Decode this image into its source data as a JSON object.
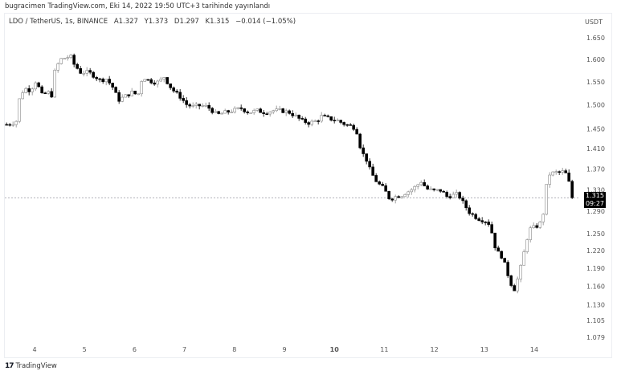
{
  "header": {
    "published": "bugracimen TradingView.com, Eki 14, 2022 19:50 UTC+3 tarihinde yayınlandı"
  },
  "legend": {
    "symbol": "LDO / TetherUS, 1s, BINANCE",
    "open": "A1.327",
    "high": "Y1.373",
    "low": "D1.297",
    "close": "K1.315",
    "change": "−0.014 (−1.05%)"
  },
  "price_label": {
    "price": "1.315",
    "countdown": "09:27"
  },
  "footer": {
    "logo_text": "TradingView",
    "logo_mark": "17"
  },
  "chart_data": {
    "type": "candlestick",
    "currency": "USDT",
    "y_scale": "log",
    "grid": false,
    "ylim": [
      1.065,
      1.69
    ],
    "y_ticks": [
      "1.650",
      "1.600",
      "1.550",
      "1.500",
      "1.450",
      "1.410",
      "1.370",
      "1.330",
      "1.290",
      "1.250",
      "1.220",
      "1.190",
      "1.160",
      "1.130",
      "1.105",
      "1.079"
    ],
    "x_ticks": [
      "4",
      "5",
      "6",
      "7",
      "8",
      "9",
      "10",
      "11",
      "12",
      "13",
      "14"
    ],
    "x_range_days": [
      3.44,
      14.8
    ],
    "colors": {
      "up_body": "#ffffff",
      "up_border": "#8a8a8a",
      "down": "#000000",
      "last_price_line": "#9598a1"
    },
    "last_price": 1.315,
    "close_path": [
      [
        3.44,
        1.459
      ],
      [
        3.63,
        1.464
      ],
      [
        3.69,
        1.51
      ],
      [
        3.79,
        1.536
      ],
      [
        3.92,
        1.531
      ],
      [
        4.03,
        1.553
      ],
      [
        4.14,
        1.521
      ],
      [
        4.27,
        1.527
      ],
      [
        4.37,
        1.518
      ],
      [
        4.4,
        1.571
      ],
      [
        4.51,
        1.6
      ],
      [
        4.63,
        1.604
      ],
      [
        4.72,
        1.607
      ],
      [
        4.79,
        1.589
      ],
      [
        4.92,
        1.571
      ],
      [
        5.08,
        1.571
      ],
      [
        5.21,
        1.562
      ],
      [
        5.32,
        1.553
      ],
      [
        5.43,
        1.557
      ],
      [
        5.56,
        1.539
      ],
      [
        5.68,
        1.51
      ],
      [
        5.8,
        1.518
      ],
      [
        5.95,
        1.527
      ],
      [
        6.07,
        1.521
      ],
      [
        6.16,
        1.562
      ],
      [
        6.28,
        1.553
      ],
      [
        6.44,
        1.548
      ],
      [
        6.52,
        1.553
      ],
      [
        6.6,
        1.562
      ],
      [
        6.68,
        1.544
      ],
      [
        6.81,
        1.527
      ],
      [
        6.91,
        1.518
      ],
      [
        7.04,
        1.501
      ],
      [
        7.17,
        1.496
      ],
      [
        7.33,
        1.499
      ],
      [
        7.46,
        1.496
      ],
      [
        7.52,
        1.491
      ],
      [
        7.65,
        1.479
      ],
      [
        7.81,
        1.484
      ],
      [
        7.97,
        1.488
      ],
      [
        8.13,
        1.493
      ],
      [
        8.29,
        1.484
      ],
      [
        8.45,
        1.488
      ],
      [
        8.61,
        1.484
      ],
      [
        8.77,
        1.488
      ],
      [
        8.94,
        1.488
      ],
      [
        9.1,
        1.484
      ],
      [
        9.23,
        1.476
      ],
      [
        9.34,
        1.467
      ],
      [
        9.5,
        1.462
      ],
      [
        9.66,
        1.467
      ],
      [
        9.74,
        1.476
      ],
      [
        9.9,
        1.471
      ],
      [
        10.06,
        1.467
      ],
      [
        10.22,
        1.459
      ],
      [
        10.38,
        1.454
      ],
      [
        10.46,
        1.442
      ],
      [
        10.54,
        1.402
      ],
      [
        10.62,
        1.394
      ],
      [
        10.7,
        1.371
      ],
      [
        10.78,
        1.355
      ],
      [
        10.86,
        1.343
      ],
      [
        10.99,
        1.332
      ],
      [
        11.11,
        1.312
      ],
      [
        11.22,
        1.317
      ],
      [
        11.35,
        1.32
      ],
      [
        11.43,
        1.325
      ],
      [
        11.51,
        1.328
      ],
      [
        11.64,
        1.337
      ],
      [
        11.75,
        1.347
      ],
      [
        11.83,
        1.332
      ],
      [
        11.99,
        1.328
      ],
      [
        12.15,
        1.329
      ],
      [
        12.23,
        1.317
      ],
      [
        12.39,
        1.32
      ],
      [
        12.47,
        1.322
      ],
      [
        12.6,
        1.302
      ],
      [
        12.71,
        1.287
      ],
      [
        12.87,
        1.277
      ],
      [
        13.04,
        1.272
      ],
      [
        13.12,
        1.265
      ],
      [
        13.2,
        1.23
      ],
      [
        13.28,
        1.216
      ],
      [
        13.36,
        1.209
      ],
      [
        13.44,
        1.188
      ],
      [
        13.52,
        1.166
      ],
      [
        13.6,
        1.155
      ],
      [
        13.68,
        1.175
      ],
      [
        13.76,
        1.202
      ],
      [
        13.84,
        1.237
      ],
      [
        13.92,
        1.258
      ],
      [
        14.05,
        1.263
      ],
      [
        14.16,
        1.272
      ],
      [
        14.21,
        1.309
      ],
      [
        14.27,
        1.358
      ],
      [
        14.4,
        1.363
      ],
      [
        14.53,
        1.363
      ],
      [
        14.61,
        1.366
      ],
      [
        14.68,
        1.347
      ],
      [
        14.76,
        1.328
      ],
      [
        14.8,
        1.315
      ]
    ]
  }
}
